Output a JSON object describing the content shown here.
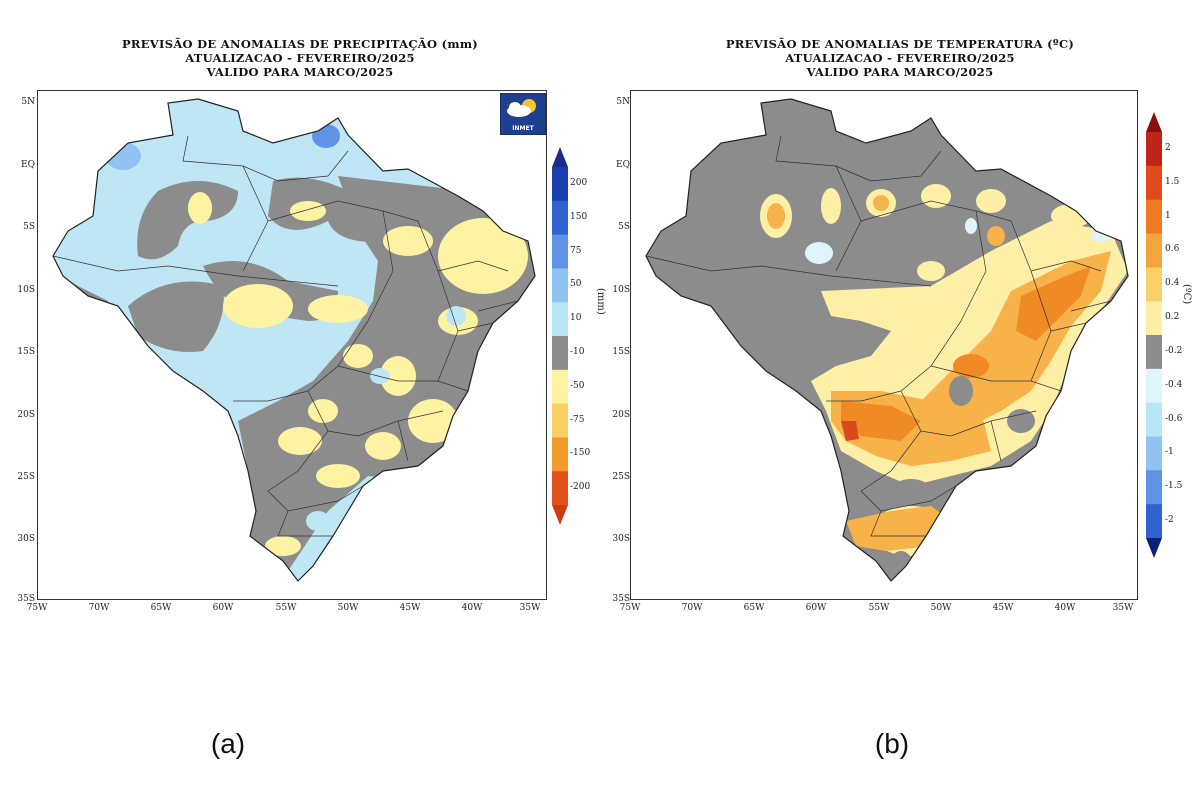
{
  "panels": [
    {
      "id": "a",
      "title": [
        "PREVISÃO DE ANOMALIAS DE PRECIPITAÇÃO (mm)",
        "ATUALIZACAO - FEVEREIRO/2025",
        "VALIDO PARA MARCO/2025"
      ],
      "unit": "(mm)",
      "caption": "(a)",
      "colorbar": [
        {
          "label": "200",
          "color": "#1a3fb0"
        },
        {
          "label": "150",
          "color": "#2f64d0"
        },
        {
          "label": "75",
          "color": "#5f93e6"
        },
        {
          "label": "50",
          "color": "#90c2f2"
        },
        {
          "label": "10",
          "color": "#b9e6f7"
        },
        {
          "label": "-10",
          "color": "#8c8c8c"
        },
        {
          "label": "-50",
          "color": "#fdf3a2"
        },
        {
          "label": "-75",
          "color": "#f7cf63"
        },
        {
          "label": "-150",
          "color": "#f29a2e"
        },
        {
          "label": "-200",
          "color": "#e0531c"
        }
      ],
      "cbar_end_top": "#1a2d8a",
      "cbar_end_bottom": "#d03b12",
      "logo": "INMET",
      "map_colors": {
        "base": "#bfe6f5",
        "gray": "#8c8c8c",
        "yellow": "#fdf3a2",
        "blue_mid": "#90c2f2",
        "blue_dark": "#5f93e6"
      }
    },
    {
      "id": "b",
      "title": [
        "PREVISÃO DE ANOMALIAS DE TEMPERATURA (ºC)",
        "ATUALIZACAO - FEVEREIRO/2025",
        "VALIDO PARA MARCO/2025"
      ],
      "unit": "(ºC)",
      "caption": "(b)",
      "colorbar": [
        {
          "label": "2",
          "color": "#c0251a"
        },
        {
          "label": "1.5",
          "color": "#e24a1e"
        },
        {
          "label": "1",
          "color": "#f07a22"
        },
        {
          "label": "0.6",
          "color": "#f4a43a"
        },
        {
          "label": "0.4",
          "color": "#f8cf6a"
        },
        {
          "label": "0.2",
          "color": "#fdf0a6"
        },
        {
          "label": "-0.2",
          "color": "#8c8c8c"
        },
        {
          "label": "-0.4",
          "color": "#e0f4fb"
        },
        {
          "label": "-0.6",
          "color": "#b9e6f7"
        },
        {
          "label": "-1",
          "color": "#90c2f2"
        },
        {
          "label": "-1.5",
          "color": "#5f93e6"
        },
        {
          "label": "-2",
          "color": "#2f64d0"
        }
      ],
      "cbar_end_top": "#8a1010",
      "cbar_end_bottom": "#0b1f7a",
      "map_colors": {
        "base": "#8c8c8c",
        "yellow": "#fdf0a6",
        "orange": "#f8b24a",
        "orange_dark": "#f08a25",
        "red": "#d9491f",
        "light_blue": "#e0f4fb"
      }
    }
  ],
  "axes": {
    "y_ticks": [
      "5N",
      "EQ",
      "5S",
      "10S",
      "15S",
      "20S",
      "25S",
      "30S",
      "35S"
    ],
    "x_ticks": [
      "75W",
      "70W",
      "65W",
      "60W",
      "55W",
      "50W",
      "45W",
      "40W",
      "35W"
    ]
  }
}
